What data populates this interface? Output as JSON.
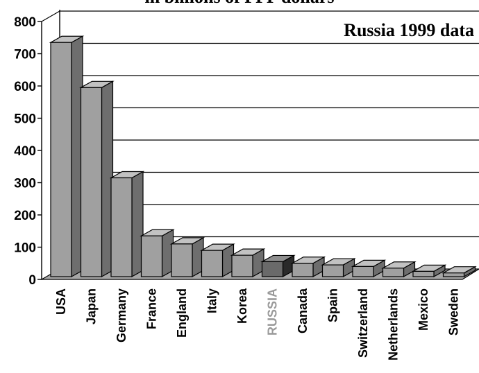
{
  "chart_data": {
    "type": "bar",
    "title": "in billions of PPP dollars",
    "annotation": "Russia 1999 data",
    "xlabel": "",
    "ylabel": "",
    "ylim": [
      0,
      800
    ],
    "yticks": [
      0,
      100,
      200,
      300,
      400,
      500,
      600,
      700,
      800
    ],
    "grid": true,
    "categories": [
      "USA",
      "Japan",
      "Germany",
      "France",
      "England",
      "Italy",
      "Korea",
      "RUSSIA",
      "Canada",
      "Spain",
      "Switzerland",
      "Netherlands",
      "Mexico",
      "Sweden"
    ],
    "values": [
      735,
      595,
      315,
      135,
      110,
      90,
      75,
      55,
      50,
      45,
      40,
      35,
      25,
      20
    ],
    "highlight": "RUSSIA",
    "colors": {
      "bar_front": "#a0a0a0",
      "bar_top": "#c2c2c2",
      "bar_side": "#6e6e6e",
      "highlight_front": "#6a6a6a",
      "highlight_top": "#8e8e8e",
      "highlight_side": "#2a2a2a",
      "highlight_label": "#9a9a9a",
      "floor": "#a6a6a6"
    }
  }
}
